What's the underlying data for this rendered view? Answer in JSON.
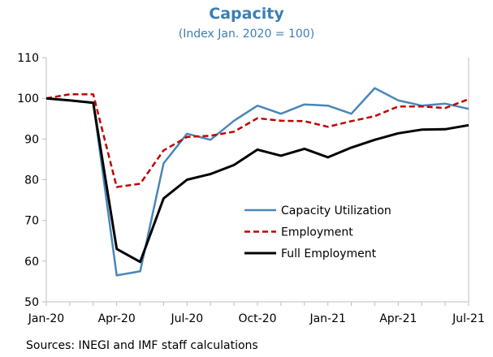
{
  "chart_data": {
    "type": "line",
    "title": "Capacity",
    "subtitle": "(Index Jan. 2020 = 100)",
    "source": "Sources: INEGI and IMF staff calculations",
    "xlabel": "",
    "ylabel": "",
    "ylim": [
      50,
      110
    ],
    "yticks": [
      "50",
      "60",
      "70",
      "80",
      "90",
      "100",
      "110"
    ],
    "x": [
      "Jan-20",
      "Feb-20",
      "Mar-20",
      "Apr-20",
      "May-20",
      "Jun-20",
      "Jul-20",
      "Aug-20",
      "Sep-20",
      "Oct-20",
      "Nov-20",
      "Dec-20",
      "Jan-21",
      "Feb-21",
      "Mar-21",
      "Apr-21",
      "May-21",
      "Jun-21",
      "Jul-21"
    ],
    "xticklabels": [
      "Jan-20",
      "Apr-20",
      "Jul-20",
      "Oct-20",
      "Jan-21",
      "Apr-21",
      "Jul-21"
    ],
    "grid": false,
    "legend_placement": "center-right",
    "series": [
      {
        "name": "Capacity Utilization",
        "color": "#4A86B8",
        "style": "solid",
        "values": [
          100,
          99.5,
          99,
          56.5,
          57.5,
          84,
          91.3,
          89.8,
          94.5,
          98.2,
          96.2,
          98.5,
          98.2,
          96.2,
          102.5,
          99.5,
          98.2,
          98.7,
          97.4
        ]
      },
      {
        "name": "Employment",
        "color": "#C00000",
        "style": "dashed",
        "values": [
          100,
          101,
          101,
          78.2,
          79,
          87.2,
          90.5,
          90.8,
          91.8,
          95.1,
          94.5,
          94.4,
          93,
          94.4,
          95.6,
          98,
          98,
          97.6,
          99.8
        ]
      },
      {
        "name": "Full Employment",
        "color": "#000000",
        "style": "solid",
        "values": [
          100,
          99.5,
          98.9,
          63,
          59.8,
          75.4,
          80,
          81.4,
          83.6,
          87.4,
          85.9,
          87.6,
          85.5,
          87.9,
          89.8,
          91.4,
          92.3,
          92.4,
          93.4
        ]
      }
    ]
  }
}
